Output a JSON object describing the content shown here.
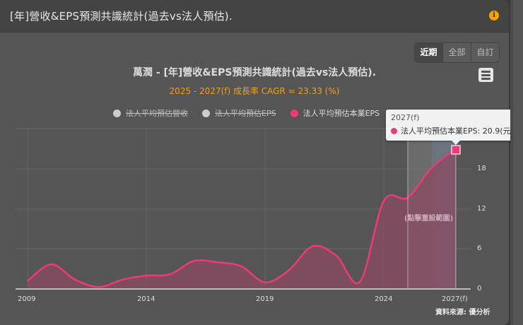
{
  "card": {
    "title": "[年]營收&EPS預測共識統計(過去vs法人預估).",
    "info_icon": "info-icon"
  },
  "range_buttons": [
    {
      "label": "近期",
      "active": true
    },
    {
      "label": "全部",
      "active": false
    },
    {
      "label": "自訂",
      "active": false
    }
  ],
  "menu_icon": "hamburger-menu-icon",
  "chart_header": {
    "title": "萬潤 - [年]營收&EPS預測共識統計(過去vs法人預估).",
    "subtitle": "2025 - 2027(f) 成長率 CAGR = 23.33 (%)"
  },
  "legend": [
    {
      "label": "法人平均預估營收",
      "color": "#cccccc",
      "visible": false
    },
    {
      "label": "法人平均預估EPS",
      "color": "#cccccc",
      "visible": false
    },
    {
      "label": "法人平均預估本業EPS",
      "color": "#ec3a7a",
      "visible": true
    }
  ],
  "tooltip": {
    "date": "2027(f)",
    "series": "法人平均預估本業EPS",
    "value_text": "法人平均預估本業EPS: 20.9(元)"
  },
  "reset_hint": "(點擊重設範圍)",
  "x_axis_labels": [
    "2009",
    "2014",
    "2019",
    "2024",
    "2027(f)"
  ],
  "y_axis_labels": [
    "0",
    "6",
    "12",
    "18"
  ],
  "source": "資料來源: 優分析",
  "colors": {
    "series": "#ec3a7a",
    "accent_subtitle": "#f0a020",
    "background": "#555555"
  },
  "chart_data": {
    "type": "area",
    "title": "萬潤 - [年]營收&EPS預測共識統計(過去vs法人預估).",
    "subtitle": "2025 - 2027(f) 成長率 CAGR = 23.33 (%)",
    "xlabel": "",
    "ylabel": "",
    "x": [
      "2009",
      "2010",
      "2011",
      "2012",
      "2013",
      "2014",
      "2015",
      "2016",
      "2017",
      "2018",
      "2019",
      "2020",
      "2021",
      "2022",
      "2023",
      "2024",
      "2025(f)",
      "2026(f)",
      "2027(f)"
    ],
    "series": [
      {
        "name": "法人平均預估本業EPS",
        "color": "#ec3a7a",
        "visible": true,
        "values": [
          1.2,
          3.7,
          1.4,
          0.3,
          1.4,
          2.0,
          2.2,
          4.2,
          4.0,
          3.4,
          1.0,
          2.8,
          6.4,
          5.0,
          1.1,
          13.2,
          13.7,
          18.1,
          20.9
        ]
      },
      {
        "name": "法人平均預估營收",
        "visible": false,
        "values": []
      },
      {
        "name": "法人平均預估EPS",
        "visible": false,
        "values": []
      }
    ],
    "ylim": [
      0,
      24
    ],
    "y_ticks": [
      0,
      6,
      12,
      18
    ],
    "x_ticks": [
      "2009",
      "2014",
      "2019",
      "2024",
      "2027(f)"
    ],
    "y_axis_position": "right",
    "grid": true,
    "legend_position": "top",
    "highlighted_point": {
      "x": "2027(f)",
      "y": 20.9,
      "unit": "元"
    },
    "forecast_band": {
      "from": "2025(f)",
      "to": "2027(f)"
    },
    "source": "資料來源: 優分析"
  }
}
